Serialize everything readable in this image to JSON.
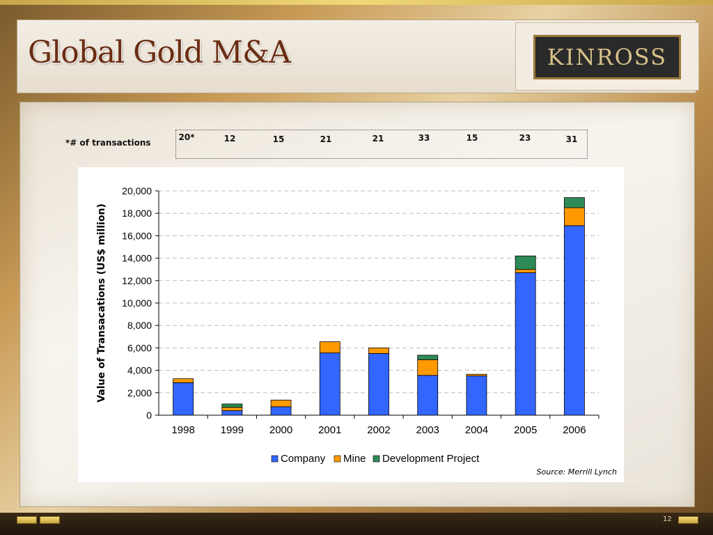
{
  "slide": {
    "title": "Global Gold M&A",
    "logo_text": "KINROSS",
    "page_number": "12"
  },
  "transactions": {
    "label": "*# of transactions",
    "counts": [
      "20*",
      "12",
      "15",
      "21",
      "21",
      "33",
      "15",
      "23",
      "31"
    ]
  },
  "source": "Source: Merrill Lynch",
  "colors": {
    "company": "#3366ff",
    "mine": "#ff9900",
    "development": "#2e8b57",
    "title": "#6a2c12"
  },
  "chart_data": {
    "type": "bar",
    "stacked": true,
    "categories": [
      "1998",
      "1999",
      "2000",
      "2001",
      "2002",
      "2003",
      "2004",
      "2005",
      "2006"
    ],
    "series": [
      {
        "name": "Company",
        "values": [
          2900,
          400,
          750,
          5550,
          5500,
          3550,
          3500,
          12700,
          16900
        ]
      },
      {
        "name": "Mine",
        "values": [
          350,
          300,
          600,
          1000,
          500,
          1400,
          150,
          300,
          1600
        ]
      },
      {
        "name": "Development Project",
        "values": [
          0,
          300,
          0,
          0,
          0,
          400,
          0,
          1200,
          900
        ]
      }
    ],
    "ylabel": "Value of Transacations (US$ million)",
    "ylim": [
      0,
      20000
    ],
    "yticks": [
      "0",
      "2,000",
      "4,000",
      "6,000",
      "8,000",
      "10,000",
      "12,000",
      "14,000",
      "16,000",
      "18,000",
      "20,000"
    ],
    "grid": true,
    "legend_position": "bottom"
  }
}
